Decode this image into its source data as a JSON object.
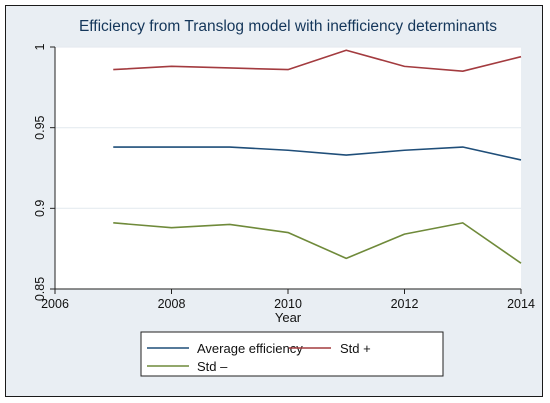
{
  "chart_data": {
    "type": "line",
    "title": "Efficiency from Translog model with inefficiency determinants",
    "xlabel": "Year",
    "ylabel": "",
    "xlim": [
      2006,
      2014
    ],
    "ylim": [
      0.85,
      1.0
    ],
    "x_ticks": [
      "2006",
      "2008",
      "2010",
      "2012",
      "2014"
    ],
    "y_ticks": [
      "0.85",
      "0.9",
      "0.95",
      "1"
    ],
    "grid": "horizontal",
    "legend_placement": "bottom",
    "x": [
      2007,
      2008,
      2009,
      2010,
      2011,
      2012,
      2013,
      2014
    ],
    "series": [
      {
        "name": "Average efficiency",
        "color": "#1f4e79",
        "values": [
          0.938,
          0.938,
          0.938,
          0.936,
          0.933,
          0.936,
          0.938,
          0.93
        ]
      },
      {
        "name": "Std +",
        "color": "#a33b3f",
        "values": [
          0.986,
          0.988,
          0.987,
          0.986,
          0.998,
          0.988,
          0.985,
          0.994
        ]
      },
      {
        "name": "Std –",
        "color": "#6f8a3a",
        "values": [
          0.891,
          0.888,
          0.89,
          0.885,
          0.869,
          0.884,
          0.891,
          0.866
        ]
      }
    ]
  }
}
